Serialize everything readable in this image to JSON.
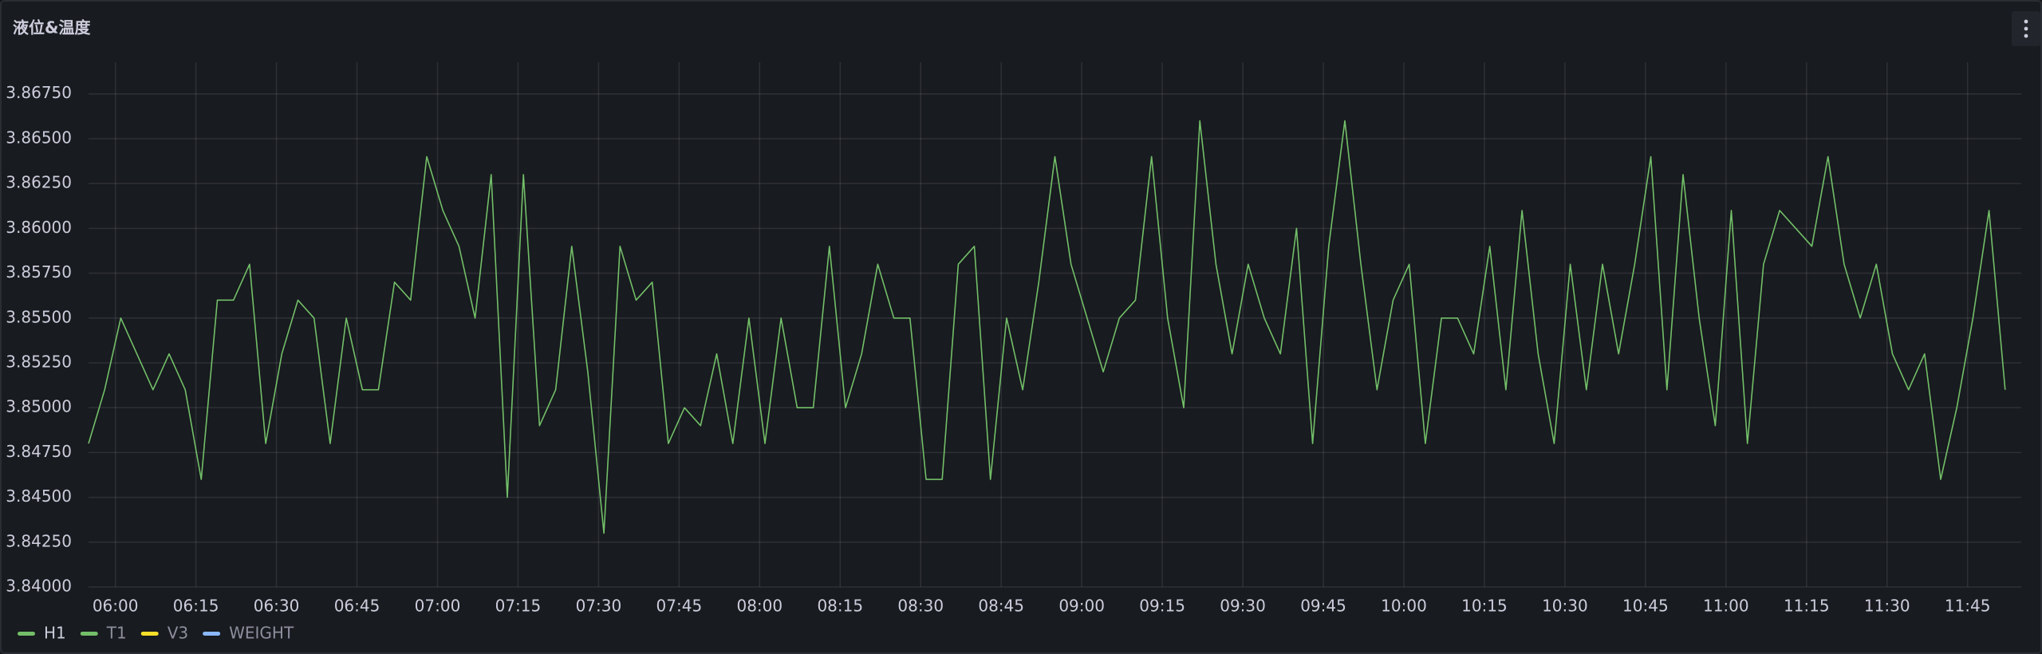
{
  "chart_data": {
    "type": "line",
    "title": "液位&温度",
    "x": [
      "05:55",
      "05:58",
      "06:01",
      "06:04",
      "06:07",
      "06:10",
      "06:13",
      "06:16",
      "06:19",
      "06:22",
      "06:25",
      "06:28",
      "06:31",
      "06:34",
      "06:37",
      "06:40",
      "06:43",
      "06:46",
      "06:49",
      "06:52",
      "06:55",
      "06:58",
      "07:01",
      "07:04",
      "07:07",
      "07:10",
      "07:13",
      "07:16",
      "07:19",
      "07:22",
      "07:25",
      "07:28",
      "07:31",
      "07:34",
      "07:37",
      "07:40",
      "07:43",
      "07:46",
      "07:49",
      "07:52",
      "07:55",
      "07:58",
      "08:01",
      "08:04",
      "08:07",
      "08:10",
      "08:13",
      "08:16",
      "08:19",
      "08:22",
      "08:25",
      "08:28",
      "08:31",
      "08:34",
      "08:37",
      "08:40",
      "08:43",
      "08:46",
      "08:49",
      "08:52",
      "08:55",
      "08:58",
      "09:01",
      "09:04",
      "09:07",
      "09:10",
      "09:13",
      "09:16",
      "09:19",
      "09:22",
      "09:25",
      "09:28",
      "09:31",
      "09:34",
      "09:37",
      "09:40",
      "09:43",
      "09:46",
      "09:49",
      "09:52",
      "09:55",
      "09:58",
      "10:01",
      "10:04",
      "10:07",
      "10:10",
      "10:13",
      "10:16",
      "10:19",
      "10:22",
      "10:25",
      "10:28",
      "10:31",
      "10:34",
      "10:37",
      "10:40",
      "10:43",
      "10:46",
      "10:49",
      "10:52",
      "10:55",
      "10:58",
      "11:01",
      "11:04",
      "11:07",
      "11:10",
      "11:13",
      "11:16",
      "11:19",
      "11:22",
      "11:25",
      "11:28",
      "11:31",
      "11:34",
      "11:37",
      "11:40",
      "11:43",
      "11:46",
      "11:49",
      "11:52"
    ],
    "series": [
      {
        "name": "H1",
        "color": "#73bf69",
        "values": [
          3.848,
          3.851,
          3.855,
          3.853,
          3.851,
          3.853,
          3.851,
          3.846,
          3.856,
          3.856,
          3.858,
          3.848,
          3.853,
          3.856,
          3.855,
          3.848,
          3.855,
          3.851,
          3.851,
          3.857,
          3.856,
          3.864,
          3.861,
          3.859,
          3.855,
          3.863,
          3.845,
          3.863,
          3.849,
          3.851,
          3.859,
          3.852,
          3.843,
          3.859,
          3.856,
          3.857,
          3.848,
          3.85,
          3.849,
          3.853,
          3.848,
          3.855,
          3.848,
          3.855,
          3.85,
          3.85,
          3.859,
          3.85,
          3.853,
          3.858,
          3.855,
          3.855,
          3.846,
          3.846,
          3.858,
          3.859,
          3.846,
          3.855,
          3.851,
          3.857,
          3.864,
          3.858,
          3.855,
          3.852,
          3.855,
          3.856,
          3.864,
          3.855,
          3.85,
          3.866,
          3.858,
          3.853,
          3.858,
          3.855,
          3.853,
          3.86,
          3.848,
          3.859,
          3.866,
          3.858,
          3.851,
          3.856,
          3.858,
          3.848,
          3.855,
          3.855,
          3.853,
          3.859,
          3.851,
          3.861,
          3.853,
          3.848,
          3.858,
          3.851,
          3.858,
          3.853,
          3.858,
          3.864,
          3.851,
          3.863,
          3.855,
          3.849,
          3.861,
          3.848,
          3.858,
          3.861,
          3.86,
          3.859,
          3.864,
          3.858,
          3.855,
          3.858,
          3.853,
          3.851,
          3.853,
          3.846,
          3.85,
          3.855,
          3.861,
          3.851
        ]
      },
      {
        "name": "T1",
        "color": "#73bf69"
      },
      {
        "name": "V3",
        "color": "#fade2a"
      },
      {
        "name": "WEIGHT",
        "color": "#8ab8ff"
      }
    ],
    "xlim": [
      "05:55",
      "11:55"
    ],
    "xticks": [
      "06:00",
      "06:15",
      "06:30",
      "06:45",
      "07:00",
      "07:15",
      "07:30",
      "07:45",
      "08:00",
      "08:15",
      "08:30",
      "08:45",
      "09:00",
      "09:15",
      "09:30",
      "09:45",
      "10:00",
      "10:15",
      "10:30",
      "10:45",
      "11:00",
      "11:15",
      "11:30",
      "11:45"
    ],
    "ylim": [
      3.84,
      3.869
    ],
    "yticks": [
      {
        "value": 3.84,
        "label": "3.84000"
      },
      {
        "value": 3.8425,
        "label": "3.84250"
      },
      {
        "value": 3.845,
        "label": "3.84500"
      },
      {
        "value": 3.8475,
        "label": "3.84750"
      },
      {
        "value": 3.85,
        "label": "3.85000"
      },
      {
        "value": 3.8525,
        "label": "3.85250"
      },
      {
        "value": 3.855,
        "label": "3.85500"
      },
      {
        "value": 3.8575,
        "label": "3.85750"
      },
      {
        "value": 3.86,
        "label": "3.86000"
      },
      {
        "value": 3.8625,
        "label": "3.86250"
      },
      {
        "value": 3.865,
        "label": "3.86500"
      },
      {
        "value": 3.8675,
        "label": "3.86750"
      }
    ],
    "grid": true
  }
}
